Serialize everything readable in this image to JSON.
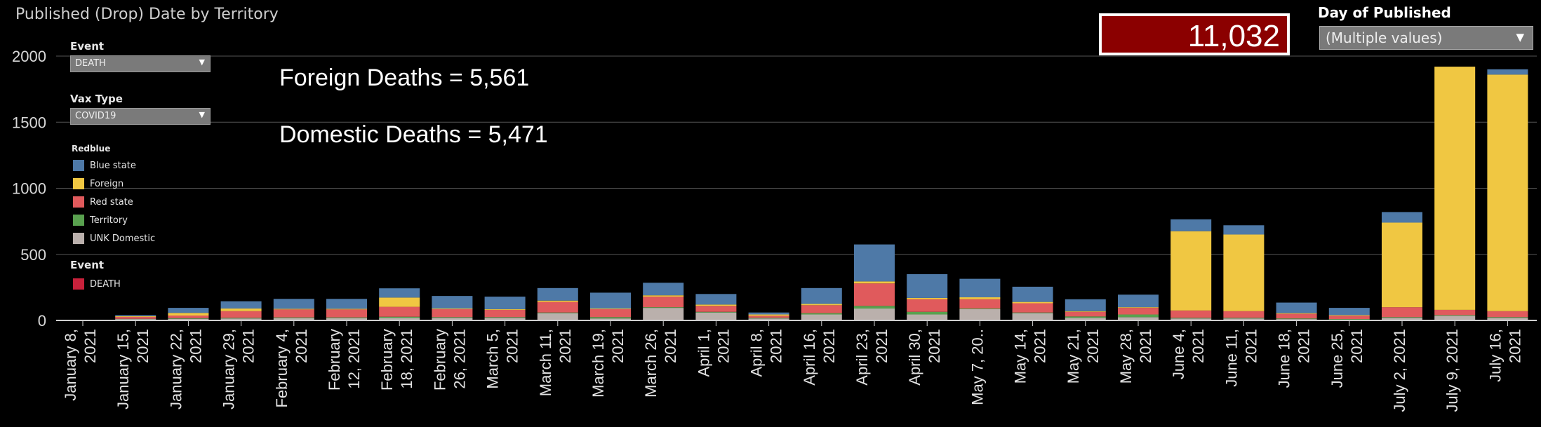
{
  "title": "Published (Drop) Date by Territory",
  "filters": {
    "event_label": "Event",
    "event_value": "DEATH",
    "vax_label": "Vax Type",
    "vax_value": "COVID19",
    "day_label": "Day of Published",
    "day_value": "(Multiple values)"
  },
  "legend": {
    "title": "Redblue",
    "items": [
      {
        "label": "Blue state",
        "color": "#4e79a7"
      },
      {
        "label": "Foreign",
        "color": "#f0c742"
      },
      {
        "label": "Red state",
        "color": "#e05a5c"
      },
      {
        "label": "Territory",
        "color": "#59a14f"
      },
      {
        "label": "UNK Domestic",
        "color": "#bab0ac"
      }
    ],
    "event_title": "Event",
    "event_items": [
      {
        "label": "DEATH",
        "color": "#c8213b"
      }
    ]
  },
  "annotations": {
    "foreign": "Foreign Deaths = 5,561",
    "domestic": "Domestic Deaths = 5,471"
  },
  "kpi": {
    "value": "11,032"
  },
  "chart_data": {
    "type": "bar",
    "stacked": true,
    "title": "Published (Drop) Date by Territory",
    "ylim": [
      0,
      2000
    ],
    "yticks": [
      0,
      500,
      1000,
      1500,
      2000
    ],
    "grid": true,
    "categories": [
      [
        "January 8,",
        "2021"
      ],
      [
        "January 15,",
        "2021"
      ],
      [
        "January 22,",
        "2021"
      ],
      [
        "January 29,",
        "2021"
      ],
      [
        "February 4,",
        "2021"
      ],
      [
        "February",
        "12, 2021"
      ],
      [
        "February",
        "18, 2021"
      ],
      [
        "February",
        "26, 2021"
      ],
      [
        "March 5,",
        "2021"
      ],
      [
        "March 11,",
        "2021"
      ],
      [
        "March 19,",
        "2021"
      ],
      [
        "March 26,",
        "2021"
      ],
      [
        "April 1,",
        "2021"
      ],
      [
        "April 8,",
        "2021"
      ],
      [
        "April 16,",
        "2021"
      ],
      [
        "April 23,",
        "2021"
      ],
      [
        "April 30,",
        "2021"
      ],
      [
        "May 7, 20.."
      ],
      [
        "May 14,",
        "2021"
      ],
      [
        "May 21,",
        "2021"
      ],
      [
        "May 28,",
        "2021"
      ],
      [
        "June 4,",
        "2021"
      ],
      [
        "June 11,",
        "2021"
      ],
      [
        "June 18,",
        "2021"
      ],
      [
        "June 25,",
        "2021"
      ],
      [
        "July 2, 2021"
      ],
      [
        "July 9, 2021"
      ],
      [
        "July 16,",
        "2021"
      ]
    ],
    "series": [
      {
        "name": "UNK Domestic",
        "color": "#bab0ac",
        "values": [
          2,
          10,
          12,
          15,
          18,
          18,
          20,
          20,
          20,
          55,
          15,
          95,
          60,
          15,
          45,
          90,
          45,
          85,
          55,
          20,
          25,
          15,
          15,
          10,
          5,
          20,
          35,
          20
        ]
      },
      {
        "name": "Territory",
        "color": "#59a14f",
        "values": [
          0,
          2,
          5,
          5,
          5,
          5,
          8,
          5,
          5,
          5,
          10,
          5,
          5,
          5,
          10,
          20,
          20,
          5,
          5,
          10,
          20,
          5,
          5,
          5,
          5,
          5,
          5,
          5
        ]
      },
      {
        "name": "Red state",
        "color": "#e05a5c",
        "values": [
          3,
          15,
          20,
          50,
          60,
          60,
          75,
          60,
          55,
          80,
          60,
          80,
          45,
          15,
          60,
          170,
          95,
          70,
          70,
          35,
          50,
          55,
          50,
          35,
          25,
          75,
          40,
          45
        ]
      },
      {
        "name": "Foreign",
        "color": "#f0c742",
        "values": [
          0,
          5,
          20,
          20,
          5,
          5,
          70,
          5,
          5,
          10,
          5,
          10,
          10,
          10,
          10,
          15,
          10,
          15,
          10,
          5,
          5,
          600,
          580,
          5,
          5,
          640,
          1840,
          1790
        ]
      },
      {
        "name": "Blue state",
        "color": "#4e79a7",
        "values": [
          0,
          8,
          38,
          55,
          75,
          75,
          70,
          95,
          95,
          95,
          120,
          95,
          80,
          15,
          120,
          280,
          180,
          140,
          115,
          90,
          95,
          90,
          70,
          80,
          55,
          80,
          0,
          40
        ]
      }
    ]
  }
}
